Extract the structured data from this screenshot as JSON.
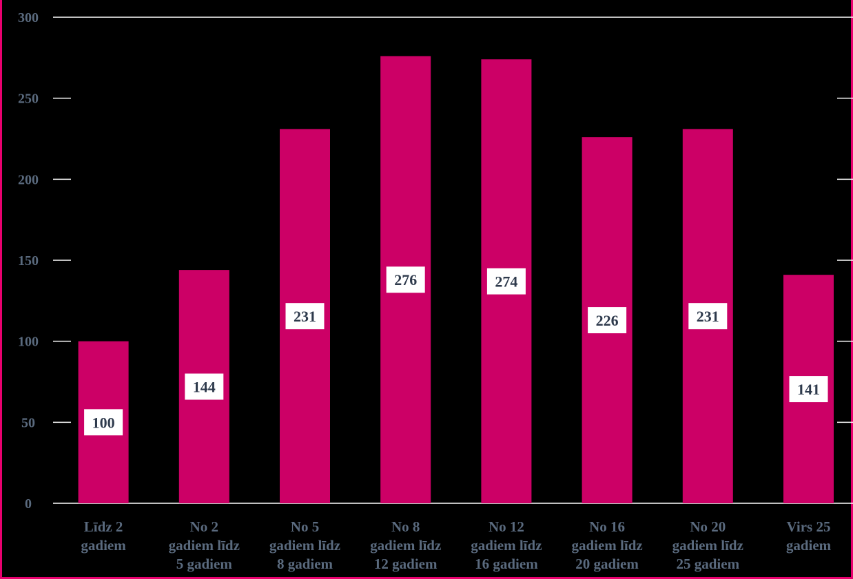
{
  "chart_data": {
    "type": "bar",
    "categories": [
      [
        "Līdz 2",
        "gadiem"
      ],
      [
        "No 2",
        "gadiem līdz",
        "5 gadiem"
      ],
      [
        "No 5",
        "gadiem līdz",
        "8 gadiem"
      ],
      [
        "No 8",
        "gadiem līdz",
        "12 gadiem"
      ],
      [
        "No 12",
        "gadiem līdz",
        "16 gadiem"
      ],
      [
        "No 16",
        "gadiem līdz",
        "20 gadiem"
      ],
      [
        "No 20",
        "gadiem līdz",
        "25 gadiem"
      ],
      [
        "Virs 25",
        "gadiem"
      ]
    ],
    "values": [
      100,
      144,
      231,
      276,
      274,
      226,
      231,
      141
    ],
    "data_labels": [
      "100",
      "144",
      "231",
      "276",
      "274",
      "226",
      "231",
      "141"
    ],
    "ylim": [
      0,
      300
    ],
    "yticks": [
      0,
      50,
      100,
      150,
      200,
      250,
      300
    ],
    "ytick_labels": [
      "0",
      "50",
      "100",
      "150",
      "200",
      "250",
      "300"
    ],
    "grid": "major y gridlines",
    "colors": {
      "bar": "#cc0066",
      "background": "#000000",
      "axis": "#ffffff",
      "label_box": "#ffffff",
      "frame": "#e8006e"
    }
  }
}
